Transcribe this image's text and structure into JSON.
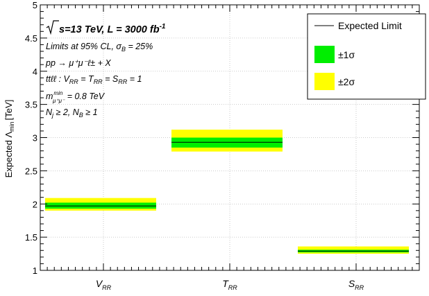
{
  "chart_data": {
    "type": "bar",
    "ylabel": "Expected Λ",
    "ylabel_sub": "min",
    "ylabel_unit": "[TeV]",
    "ylim": [
      1,
      5
    ],
    "yticks": [
      "1",
      "1.5",
      "2",
      "2.5",
      "3",
      "3.5",
      "4",
      "4.5",
      "5"
    ],
    "ytick_values": [
      1,
      1.5,
      2,
      2.5,
      3,
      3.5,
      4,
      4.5,
      5
    ],
    "categories": [
      {
        "main": "V",
        "sub": "RR"
      },
      {
        "main": "T",
        "sub": "RR"
      },
      {
        "main": "S",
        "sub": "RR"
      }
    ],
    "series": [
      {
        "name": "Expected Limit",
        "values": [
          1.97,
          2.93,
          1.29
        ]
      },
      {
        "name": "±1σ",
        "lower": [
          1.93,
          2.85,
          1.27
        ],
        "upper": [
          2.02,
          3.0,
          1.31
        ]
      },
      {
        "name": "±2σ",
        "lower": [
          1.9,
          2.79,
          1.25
        ],
        "upper": [
          2.09,
          3.12,
          1.36
        ]
      }
    ],
    "colors": {
      "line": "#000000",
      "one_sigma": "#00ee00",
      "two_sigma": "#ffff00"
    },
    "grid": true,
    "legend_position": "top-right",
    "annotations": {
      "energy_line": {
        "pre": "s=13 TeV, L = 3000 fb",
        "sup": "-1"
      },
      "cl_line": {
        "pre": "Limits at 95% CL, σ",
        "sub": "B",
        "post": " = 25%"
      },
      "process_line": "pp → μ⁺μ⁻ℓ± + X",
      "coupling_line": {
        "pre": "ttℓℓ : V",
        "sub1": "RR",
        "mid1": " = T",
        "sub2": "RR",
        "mid2": " = S",
        "sub3": "RR",
        "post": " = 1"
      },
      "mass_line": {
        "pre": "m",
        "sup": "min",
        "sub": "μ⁺μ⁻",
        "post": " = 0.8 TeV"
      },
      "jets_line": {
        "pre": "N",
        "sub1": "j",
        "mid": " ≥ 2, N",
        "sub2": "B",
        "post": " ≥ 1"
      }
    }
  }
}
